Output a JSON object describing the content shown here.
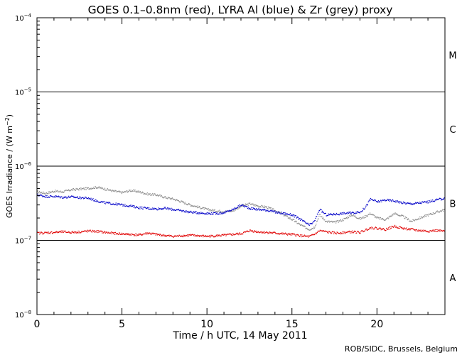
{
  "chart_data": {
    "type": "scatter",
    "title": "GOES 0.1–0.8nm (red), LYRA Al (blue) & Zr (grey) proxy",
    "xlabel": "Time / h UTC, 14 May 2011",
    "ylabel_text": "GOES Irradiance / (W m",
    "ylabel_sup": "−2",
    "ylabel_close": ")",
    "credit": "ROB/SIDC, Brussels, Belgium",
    "xlim": [
      0,
      24
    ],
    "ylim_log10": [
      -8,
      -4
    ],
    "y_scale": "log",
    "x_ticks": [
      {
        "value": 0,
        "label": "0"
      },
      {
        "value": 5,
        "label": "5"
      },
      {
        "value": 10,
        "label": "10"
      },
      {
        "value": 15,
        "label": "15"
      },
      {
        "value": 20,
        "label": "20"
      }
    ],
    "y_ticks": [
      {
        "exp": -8,
        "base": "10",
        "sup": "−8"
      },
      {
        "exp": -7,
        "base": "10",
        "sup": "−7"
      },
      {
        "exp": -6,
        "base": "10",
        "sup": "−6"
      },
      {
        "exp": -5,
        "base": "10",
        "sup": "−5"
      },
      {
        "exp": -4,
        "base": "10",
        "sup": "−4"
      }
    ],
    "flare_thresholds": [
      -7,
      -6,
      -5
    ],
    "flare_classes": [
      {
        "label": "A",
        "log10": -7.5
      },
      {
        "label": "B",
        "log10": -6.5
      },
      {
        "label": "C",
        "log10": -5.5
      },
      {
        "label": "M",
        "log10": -4.5
      }
    ],
    "series": [
      {
        "name": "red",
        "color": "#e00000",
        "x": [
          0,
          0.5,
          1,
          1.5,
          2,
          2.5,
          3,
          3.5,
          4,
          4.5,
          5,
          5.5,
          6,
          6.5,
          7,
          7.5,
          8,
          8.5,
          9,
          9.5,
          10,
          10.5,
          11,
          11.5,
          12,
          12.5,
          13,
          13.5,
          14,
          14.5,
          15,
          15.5,
          16,
          16.3,
          16.6,
          17,
          17.5,
          18,
          18.5,
          19,
          19.3,
          19.6,
          20,
          20.5,
          21,
          21.5,
          22,
          22.5,
          23,
          23.5,
          24
        ],
        "y": [
          1.25e-07,
          1.26e-07,
          1.28e-07,
          1.3e-07,
          1.28e-07,
          1.3e-07,
          1.33e-07,
          1.32e-07,
          1.28e-07,
          1.24e-07,
          1.22e-07,
          1.2e-07,
          1.18e-07,
          1.25e-07,
          1.2e-07,
          1.16e-07,
          1.13e-07,
          1.15e-07,
          1.17e-07,
          1.15e-07,
          1.13e-07,
          1.15e-07,
          1.17e-07,
          1.2e-07,
          1.23e-07,
          1.35e-07,
          1.3e-07,
          1.28e-07,
          1.25e-07,
          1.22e-07,
          1.2e-07,
          1.15e-07,
          1.12e-07,
          1.2e-07,
          1.35e-07,
          1.3e-07,
          1.25e-07,
          1.27e-07,
          1.3e-07,
          1.28e-07,
          1.38e-07,
          1.48e-07,
          1.45e-07,
          1.4e-07,
          1.55e-07,
          1.45e-07,
          1.4e-07,
          1.35e-07,
          1.33e-07,
          1.35e-07,
          1.32e-07
        ]
      },
      {
        "name": "blue",
        "color": "#0000c8",
        "x": [
          0,
          0.5,
          1,
          1.5,
          2,
          2.5,
          3,
          3.5,
          4,
          4.5,
          5,
          5.5,
          6,
          6.5,
          7,
          7.5,
          8,
          8.5,
          9,
          9.5,
          10,
          10.5,
          11,
          11.5,
          12,
          12.5,
          13,
          13.5,
          14,
          14.5,
          15,
          15.5,
          16,
          16.3,
          16.6,
          17,
          17.5,
          18,
          18.5,
          19,
          19.3,
          19.6,
          20,
          20.5,
          21,
          21.5,
          22,
          22.5,
          23,
          23.5,
          24
        ],
        "y": [
          4.1e-07,
          3.9e-07,
          3.9e-07,
          3.8e-07,
          3.85e-07,
          3.75e-07,
          3.7e-07,
          3.4e-07,
          3.2e-07,
          3.1e-07,
          3e-07,
          2.9e-07,
          2.75e-07,
          2.7e-07,
          2.65e-07,
          2.7e-07,
          2.6e-07,
          2.5e-07,
          2.4e-07,
          2.35e-07,
          2.3e-07,
          2.3e-07,
          2.35e-07,
          2.6e-07,
          3e-07,
          2.7e-07,
          2.6e-07,
          2.55e-07,
          2.4e-07,
          2.3e-07,
          2.2e-07,
          1.9e-07,
          1.6e-07,
          1.8e-07,
          2.6e-07,
          2.2e-07,
          2.25e-07,
          2.3e-07,
          2.35e-07,
          2.4e-07,
          2.8e-07,
          3.6e-07,
          3.3e-07,
          3.5e-07,
          3.4e-07,
          3.2e-07,
          3.1e-07,
          3.2e-07,
          3.3e-07,
          3.5e-07,
          3.7e-07
        ]
      },
      {
        "name": "grey",
        "color": "#8c8c8c",
        "x": [
          0,
          0.5,
          1,
          1.5,
          2,
          2.5,
          3,
          3.5,
          4,
          4.5,
          5,
          5.5,
          6,
          6.5,
          7,
          7.5,
          8,
          8.5,
          9,
          9.5,
          10,
          10.5,
          11,
          11.5,
          12,
          12.5,
          13,
          13.5,
          14,
          14.5,
          15,
          15.5,
          16,
          16.3,
          16.6,
          17,
          17.5,
          18,
          18.5,
          19,
          19.3,
          19.6,
          20,
          20.5,
          21,
          21.5,
          22,
          22.5,
          23,
          23.5,
          24
        ],
        "y": [
          4.5e-07,
          4.3e-07,
          4.6e-07,
          4.5e-07,
          4.8e-07,
          4.9e-07,
          5e-07,
          5.2e-07,
          4.9e-07,
          4.6e-07,
          4.4e-07,
          4.7e-07,
          4.5e-07,
          4.2e-07,
          4.1e-07,
          3.8e-07,
          3.6e-07,
          3.3e-07,
          3e-07,
          2.8e-07,
          2.6e-07,
          2.5e-07,
          2.45e-07,
          2.5e-07,
          2.9e-07,
          3.1e-07,
          2.9e-07,
          2.8e-07,
          2.5e-07,
          2.2e-07,
          1.9e-07,
          1.6e-07,
          1.4e-07,
          1.5e-07,
          2.2e-07,
          1.8e-07,
          1.75e-07,
          1.9e-07,
          2.2e-07,
          1.95e-07,
          2.1e-07,
          2.3e-07,
          2e-07,
          1.9e-07,
          2.3e-07,
          2.1e-07,
          1.8e-07,
          2e-07,
          2.2e-07,
          2.4e-07,
          2.6e-07
        ]
      }
    ],
    "grid": false,
    "legend": "none"
  }
}
